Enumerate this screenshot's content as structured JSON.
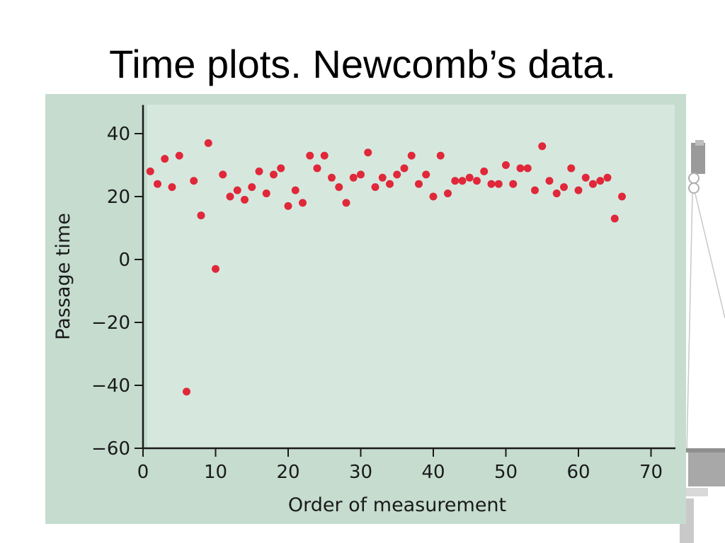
{
  "slide": {
    "title": "Time plots. Newcomb’s data."
  },
  "colors": {
    "panel_outer": "#c5dccf",
    "panel_inner": "#d6e8de",
    "point": "#e0283a",
    "axis": "#1a1a1a"
  },
  "chart_data": {
    "type": "scatter",
    "title": "",
    "xlabel": "Order of measurement",
    "ylabel": "Passage time",
    "xlim": [
      0,
      70
    ],
    "ylim": [
      -60,
      50
    ],
    "xticks": [
      0,
      10,
      20,
      30,
      40,
      50,
      60,
      70
    ],
    "yticks": [
      -60,
      -40,
      -20,
      0,
      20,
      40
    ],
    "xtick_labels": [
      "0",
      "10",
      "20",
      "30",
      "40",
      "50",
      "60",
      "70"
    ],
    "ytick_labels": [
      "−60",
      "−40",
      "−20",
      "0",
      "20",
      "40"
    ],
    "grid": false,
    "legend": "none",
    "series": [
      {
        "x": [
          1,
          2,
          3,
          4,
          5,
          6,
          7,
          8,
          9,
          10,
          11,
          12,
          13,
          14,
          15,
          16,
          17,
          18,
          19,
          20,
          21,
          22,
          23,
          24,
          25,
          26,
          27,
          28,
          29,
          30,
          31,
          32,
          33,
          34,
          35,
          36,
          37,
          38,
          39,
          40,
          41,
          42,
          43,
          44,
          45,
          46,
          47,
          48,
          49,
          50,
          51,
          52,
          53,
          54,
          55,
          56,
          57,
          58,
          59,
          60,
          61,
          62,
          63,
          64,
          65,
          66
        ],
        "y": [
          28,
          24,
          32,
          23,
          33,
          -42,
          25,
          14,
          37,
          -3,
          27,
          20,
          22,
          19,
          23,
          28,
          21,
          27,
          29,
          17,
          22,
          18,
          33,
          29,
          33,
          26,
          23,
          18,
          26,
          27,
          34,
          23,
          26,
          24,
          27,
          29,
          33,
          24,
          27,
          20,
          33,
          21,
          25,
          25,
          26,
          25,
          28,
          24,
          24,
          30,
          24,
          29,
          29,
          22,
          36,
          25,
          21,
          23,
          29,
          22,
          26,
          24,
          25,
          26,
          13,
          20
        ]
      }
    ]
  }
}
